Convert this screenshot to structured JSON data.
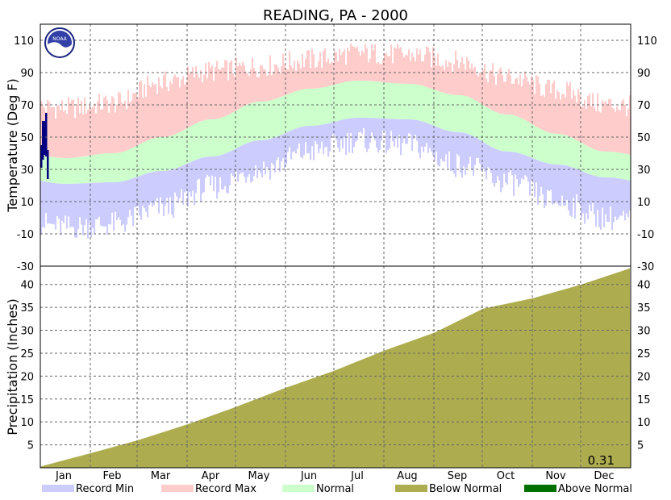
{
  "chart_data": [
    {
      "type": "bar",
      "title": "READING, PA - 2000",
      "ylabel": "Temperature (Deg F)",
      "ylim": [
        -30,
        120
      ],
      "yticks": [
        -30,
        -10,
        10,
        30,
        50,
        70,
        90,
        110
      ],
      "xticks": [
        "Jan",
        "Feb",
        "Mar",
        "Apr",
        "May",
        "Jun",
        "Jul",
        "Aug",
        "Sep",
        "Oct",
        "Nov",
        "Dec"
      ],
      "grid": true,
      "series": [
        {
          "name": "Record Min",
          "color": "#ccccff",
          "monthly_values": [
            -6,
            -4,
            6,
            19,
            30,
            41,
            48,
            45,
            33,
            22,
            10,
            0
          ]
        },
        {
          "name": "Record Max",
          "color": "#ffcccc",
          "monthly_values": [
            69,
            72,
            85,
            92,
            95,
            99,
            103,
            102,
            98,
            88,
            80,
            71
          ]
        },
        {
          "name": "Normal",
          "monthly_values_low": [
            21,
            22,
            29,
            38,
            48,
            57,
            62,
            61,
            53,
            41,
            33,
            25
          ],
          "monthly_values_high": [
            37,
            40,
            50,
            61,
            72,
            80,
            85,
            83,
            76,
            64,
            52,
            41
          ],
          "color": "#ccffcc"
        }
      ],
      "observed": {
        "color": "#000080",
        "bars": [
          {
            "day": 1,
            "low": 31,
            "high": 45
          },
          {
            "day": 2,
            "low": 36,
            "high": 60
          },
          {
            "day": 3,
            "low": 39,
            "high": 60
          },
          {
            "day": 4,
            "low": 38,
            "high": 65
          },
          {
            "day": 5,
            "low": 24,
            "high": 42
          }
        ]
      }
    },
    {
      "type": "area",
      "ylabel": "Precipitation (Inches)",
      "ylim": [
        0,
        44
      ],
      "yticks": [
        5,
        10,
        15,
        20,
        25,
        30,
        35,
        40
      ],
      "grid": true,
      "series": [
        {
          "name": "Below Normal",
          "color": "#adad50",
          "x_day_of_year": [
            1,
            32,
            61,
            92,
            122,
            153,
            183,
            214,
            245,
            275,
            306,
            336,
            366
          ],
          "cumulative_inches": [
            0.3,
            3.2,
            6.0,
            9.5,
            13.3,
            17.5,
            21.2,
            25.6,
            29.5,
            34.7,
            37.0,
            40.0,
            43.5
          ]
        }
      ],
      "annotation": "0.31"
    }
  ],
  "legend": {
    "items": [
      {
        "label": "Record Min",
        "color": "#ccccff"
      },
      {
        "label": "Record Max",
        "color": "#ffcccc"
      },
      {
        "label": "Normal",
        "color": "#ccffcc"
      },
      {
        "label": "Below Normal",
        "color": "#adad50"
      },
      {
        "label": "Above Normal",
        "color": "#007000"
      }
    ]
  },
  "logo": {
    "text": "NOAA",
    "name": "noaa-logo"
  }
}
